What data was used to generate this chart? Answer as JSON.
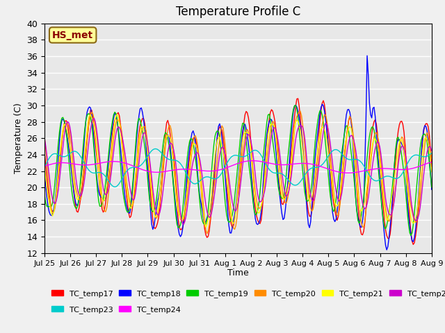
{
  "title": "Temperature Profile C",
  "xlabel": "Time",
  "ylabel": "Temperature (C)",
  "ylim": [
    12,
    40
  ],
  "yticks": [
    12,
    14,
    16,
    18,
    20,
    22,
    24,
    26,
    28,
    30,
    32,
    34,
    36,
    38,
    40
  ],
  "annotation_text": "HS_met",
  "annotation_color": "#8B0000",
  "annotation_bg": "#FFFF99",
  "plot_bg": "#E8E8E8",
  "series_colors": {
    "TC_temp17": "#FF0000",
    "TC_temp18": "#0000FF",
    "TC_temp19": "#00CC00",
    "TC_temp20": "#FF8C00",
    "TC_temp21": "#FFFF00",
    "TC_temp22": "#CC00CC",
    "TC_temp23": "#00CCCC",
    "TC_temp24": "#FF00FF"
  },
  "x_tick_labels": [
    "Jul 25",
    "Jul 26",
    "Jul 27",
    "Jul 28",
    "Jul 29",
    "Jul 30",
    "Jul 31",
    "Aug 1",
    "Aug 2",
    "Aug 3",
    "Aug 4",
    "Aug 5",
    "Aug 6",
    "Aug 7",
    "Aug 8",
    "Aug 9"
  ],
  "n_points": 337
}
